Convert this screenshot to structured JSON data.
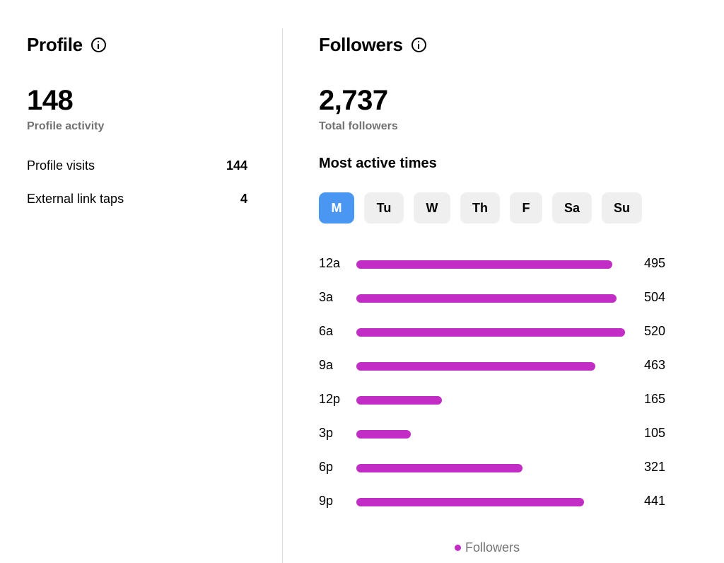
{
  "profile": {
    "title": "Profile",
    "total": "148",
    "total_label": "Profile activity",
    "rows": [
      {
        "label": "Profile visits",
        "value": "144"
      },
      {
        "label": "External link taps",
        "value": "4"
      }
    ]
  },
  "followers": {
    "title": "Followers",
    "total": "2,737",
    "total_label": "Total followers",
    "section_title": "Most active times",
    "days": [
      {
        "label": "M",
        "active": true
      },
      {
        "label": "Tu",
        "active": false
      },
      {
        "label": "W",
        "active": false
      },
      {
        "label": "Th",
        "active": false
      },
      {
        "label": "F",
        "active": false
      },
      {
        "label": "Sa",
        "active": false
      },
      {
        "label": "Su",
        "active": false
      }
    ],
    "legend_label": "Followers"
  },
  "chart_data": {
    "type": "bar",
    "orientation": "horizontal",
    "categories": [
      "12a",
      "3a",
      "6a",
      "9a",
      "12p",
      "3p",
      "6p",
      "9p"
    ],
    "series": [
      {
        "name": "Followers",
        "values": [
          495,
          504,
          520,
          463,
          165,
          105,
          321,
          441
        ]
      }
    ],
    "ylim": [
      0,
      520
    ],
    "grid": false,
    "legend": "bottom-center",
    "colors": {
      "bar": "#c22dc6",
      "active_tab": "#4a97f1",
      "tab": "#efefef"
    }
  }
}
